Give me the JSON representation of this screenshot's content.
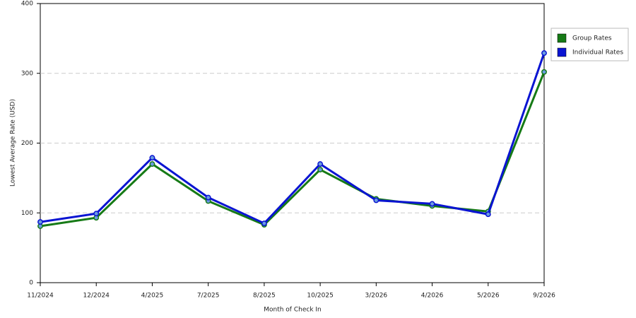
{
  "chart_data": {
    "type": "line",
    "x_label": "Month of Check In",
    "y_label": "Lowest Average Rate (USD)",
    "categories": [
      "11/2024",
      "12/2024",
      "4/2025",
      "7/2025",
      "8/2025",
      "10/2025",
      "3/2026",
      "4/2026",
      "5/2026",
      "9/2026"
    ],
    "series": [
      {
        "name": "Group Rates",
        "color": "#167a16",
        "values": [
          81,
          93,
          170,
          117,
          83,
          162,
          120,
          110,
          102,
          302
        ]
      },
      {
        "name": "Individual Rates",
        "color": "#0a14d2",
        "values": [
          87,
          99,
          179,
          122,
          85,
          170,
          118,
          113,
          98,
          329
        ]
      }
    ],
    "ylim": [
      0,
      400
    ],
    "yticks": [
      0,
      100,
      200,
      300,
      400
    ],
    "grid": true,
    "legend": "right"
  }
}
